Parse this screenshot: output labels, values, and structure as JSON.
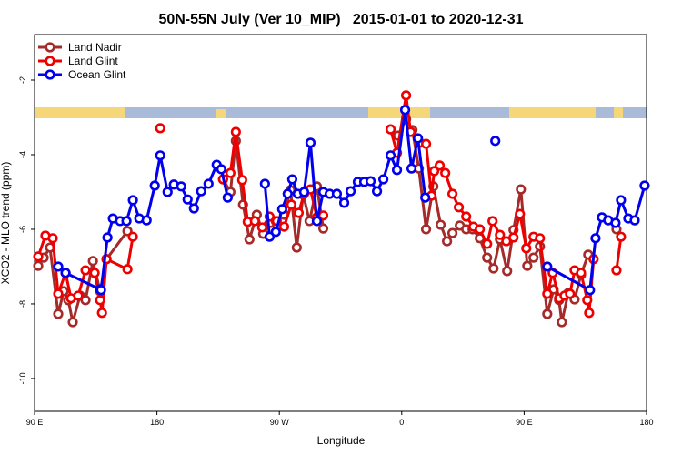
{
  "chart_data": {
    "type": "line",
    "title": "50N-55N July (Ver 10_MIP)   2015-01-01 to 2020-12-31",
    "x_label": "Longitude",
    "y_label": "XCO2 - MLO trend (ppm)",
    "xlim": [
      90,
      540
    ],
    "ylim": [
      -10.88,
      -0.78
    ],
    "xticks": [
      {
        "value": 90,
        "label": "90 E"
      },
      {
        "value": 180,
        "label": "180"
      },
      {
        "value": 270,
        "label": "90 W"
      },
      {
        "value": 360,
        "label": "0"
      },
      {
        "value": 450,
        "label": "90 E"
      },
      {
        "value": 540,
        "label": "180"
      }
    ],
    "yticks": [
      -2,
      -4,
      -6,
      -8,
      -10
    ],
    "legend": "top-left",
    "series": [
      {
        "name": "Land Nadir",
        "color": "#a52a2a",
        "x": [
          92.7,
          96.7,
          101.4,
          107.4,
          111.4,
          114.8,
          118.1,
          123.5,
          127.5,
          132.9,
          138.2,
          142.9,
          158.3,
          null,
          228.6,
          234.0,
          238.0,
          243.3,
          248.0,
          253.4,
          258.1,
          263.4,
          267.4,
          273.5,
          278.2,
          282.8,
          287.5,
          292.2,
          297.6,
          302.3,
          null,
          357.2,
          363.2,
          367.9,
          372.6,
          377.9,
          383.3,
          388.6,
          393.3,
          397.3,
          402.7,
          407.4,
          412.1,
          417.4,
          422.8,
          427.5,
          432.2,
          437.5,
          442.2,
          447.6,
          452.3,
          456.9,
          461.6,
          467.0,
          471.7,
          475.7,
          477.7,
          482.4,
          487.1,
          491.8,
          497.1,
          null,
          517.9
        ],
        "values": [
          -6.98,
          -6.76,
          -6.49,
          -8.27,
          -7.66,
          -7.9,
          -8.49,
          -7.78,
          -7.9,
          -6.85,
          -7.66,
          -6.8,
          -6.05,
          null,
          -4.66,
          -5.0,
          -3.63,
          -5.34,
          -6.27,
          -5.61,
          -6.12,
          -5.83,
          -5.78,
          -5.61,
          -4.95,
          -6.49,
          -5.07,
          -5.78,
          -4.85,
          -5.98,
          null,
          -3.49,
          -3.05,
          -3.34,
          -4.37,
          -6.0,
          -4.85,
          -5.88,
          -6.32,
          -6.1,
          -5.9,
          -6.0,
          -6.0,
          -6.24,
          -6.76,
          -7.05,
          -6.27,
          -7.12,
          -6.02,
          -4.93,
          -6.98,
          -6.76,
          -6.46,
          -8.27,
          -7.61,
          -7.9,
          -8.49,
          -7.71,
          -7.88,
          -7.22,
          -6.68,
          null,
          -6.0
        ]
      },
      {
        "name": "Land Glint",
        "color": "#ee0000",
        "x": [
          92.7,
          98.0,
          103.4,
          107.4,
          112.8,
          116.8,
          122.1,
          127.5,
          134.2,
          138.2,
          139.6,
          142.9,
          158.3,
          162.3,
          null,
          182.4,
          null,
          228.6,
          234.0,
          238.0,
          242.7,
          246.7,
          252.0,
          257.4,
          262.8,
          268.1,
          273.5,
          278.8,
          284.2,
          288.2,
          292.9,
          297.6,
          302.3,
          null,
          351.8,
          356.5,
          363.2,
          366.5,
          373.2,
          377.9,
          381.9,
          383.9,
          387.9,
          392.0,
          397.3,
          402.0,
          407.4,
          412.7,
          417.4,
          422.8,
          426.8,
          432.2,
          436.9,
          442.2,
          446.9,
          451.6,
          456.9,
          461.6,
          467.0,
          471.0,
          475.7,
          479.7,
          483.7,
          487.1,
          491.8,
          496.4,
          497.8,
          501.1,
          null,
          517.9,
          521.2
        ],
        "values": [
          -6.73,
          -6.17,
          -6.24,
          -7.73,
          -7.17,
          -7.85,
          -7.78,
          -7.1,
          -7.17,
          -7.9,
          -8.24,
          -6.8,
          -7.07,
          -6.2,
          null,
          -3.29,
          null,
          -4.66,
          -4.49,
          -3.39,
          -4.68,
          -5.8,
          -5.78,
          -5.95,
          -5.66,
          -5.78,
          -5.93,
          -5.34,
          -5.56,
          -5.05,
          -4.93,
          -5.68,
          -5.63,
          null,
          -3.32,
          -3.95,
          -2.41,
          -3.39,
          -3.68,
          -3.71,
          -5.1,
          -4.44,
          -4.29,
          -4.49,
          -5.05,
          -5.41,
          -5.66,
          -5.93,
          -6.0,
          -6.39,
          -5.78,
          -6.15,
          -6.32,
          -6.22,
          -5.59,
          -6.51,
          -6.2,
          -6.24,
          -7.73,
          -7.17,
          -7.85,
          -7.78,
          -7.73,
          -7.1,
          -7.17,
          -7.9,
          -8.24,
          -6.8,
          null,
          -7.1,
          -6.2
        ]
      },
      {
        "name": "Ocean Glint",
        "color": "#0000ee",
        "x": [
          107.4,
          112.8,
          138.2,
          138.9,
          143.6,
          147.6,
          152.9,
          157.6,
          162.3,
          167.0,
          172.4,
          178.4,
          182.4,
          187.8,
          192.4,
          197.8,
          202.5,
          207.2,
          212.5,
          217.9,
          223.9,
          227.3,
          232.0,
          null,
          259.4,
          262.8,
          267.4,
          272.1,
          276.1,
          279.5,
          283.5,
          288.2,
          292.9,
          297.6,
          302.3,
          307.0,
          312.3,
          317.7,
          322.4,
          327.7,
          332.4,
          337.1,
          341.8,
          346.5,
          351.8,
          356.5,
          362.5,
          367.2,
          371.9,
          377.3,
          null,
          428.8,
          null,
          467.0,
          498.4,
          502.5,
          507.2,
          511.8,
          517.2,
          521.2,
          526.6,
          531.3,
          538.6
        ],
        "values": [
          -7.0,
          -7.17,
          -7.61,
          -7.63,
          -6.22,
          -5.71,
          -5.78,
          -5.78,
          -5.22,
          -5.71,
          -5.76,
          -4.83,
          -4.02,
          -5.0,
          -4.8,
          -4.85,
          -5.2,
          -5.44,
          -4.98,
          -4.78,
          -4.27,
          -4.39,
          -5.15,
          null,
          -4.78,
          -6.2,
          -6.07,
          -5.46,
          -5.05,
          -4.66,
          -5.05,
          -5.0,
          -3.68,
          -5.78,
          -5.0,
          -5.05,
          -5.05,
          -5.29,
          -4.98,
          -4.73,
          -4.73,
          -4.71,
          -4.98,
          -4.66,
          -4.02,
          -4.41,
          -2.8,
          -4.37,
          -3.56,
          -5.15,
          null,
          -3.63,
          null,
          -7.0,
          -7.63,
          -6.24,
          -5.68,
          -5.76,
          -5.83,
          -5.22,
          -5.71,
          -5.76,
          -4.83
        ]
      }
    ]
  }
}
